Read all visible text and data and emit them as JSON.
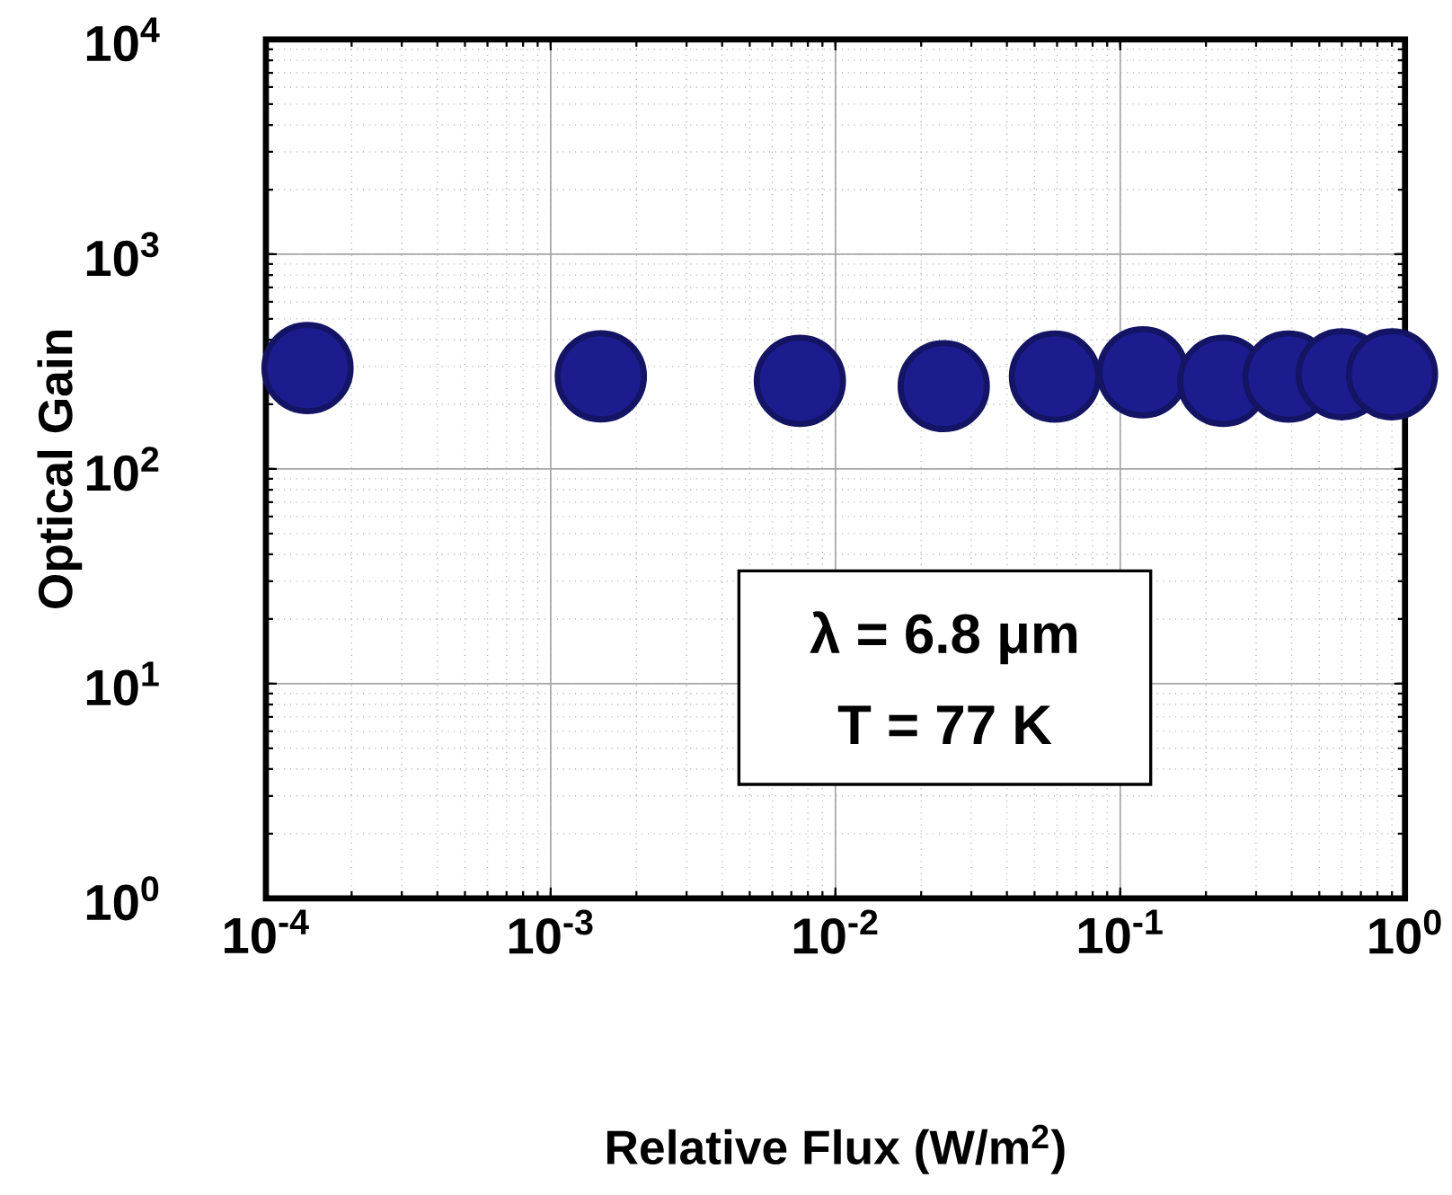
{
  "chart_data": {
    "type": "scatter",
    "xlabel": "Relative Flux (W/m$^{2}$)",
    "ylabel": "Optical Gain",
    "log": "xy",
    "grid": true,
    "marker": "circle",
    "xlim": [
      0.0001,
      1
    ],
    "ylim": [
      1,
      10000
    ],
    "xticks": [
      {
        "value": 0.0001,
        "label": "10$^{-4}$"
      },
      {
        "value": 0.001,
        "label": "10$^{-3}$"
      },
      {
        "value": 0.01,
        "label": "10$^{-2}$"
      },
      {
        "value": 0.1,
        "label": "10$^{-1}$"
      },
      {
        "value": 1,
        "label": "10$^{0}$"
      }
    ],
    "yticks": [
      {
        "value": 1,
        "label": "10$^{0}$"
      },
      {
        "value": 10,
        "label": "10$^{1}$"
      },
      {
        "value": 100,
        "label": "10$^{2}$"
      },
      {
        "value": 1000,
        "label": "10$^{3}$"
      },
      {
        "value": 10000,
        "label": "10$^{4}$"
      }
    ],
    "x": [
      0.00014,
      0.0015,
      0.0075,
      0.024,
      0.059,
      0.12,
      0.23,
      0.39,
      0.6,
      0.9
    ],
    "series": [
      {
        "color": "#1c1c8f",
        "values": [
          295,
          270,
          257,
          243,
          269,
          282,
          257,
          269,
          276,
          276
        ]
      }
    ],
    "annotations": [
      "λ = 6.8 μm",
      "T = 77 K"
    ]
  }
}
